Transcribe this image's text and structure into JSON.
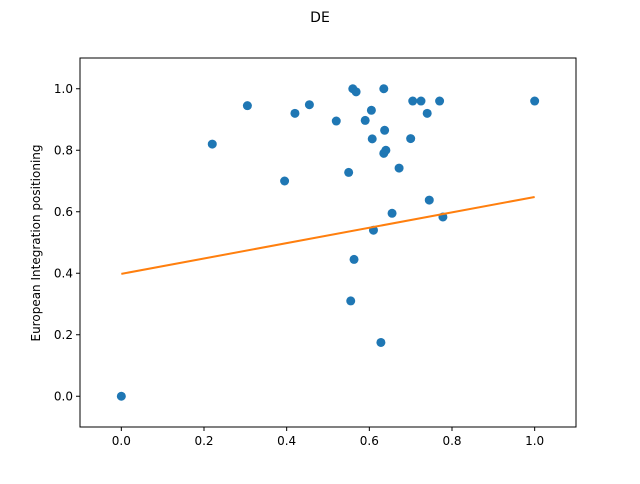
{
  "chart_data": {
    "type": "scatter",
    "title": "DE",
    "xlabel": "",
    "ylabel": "European Integration positioning",
    "xlim": [
      -0.1,
      1.1
    ],
    "ylim": [
      -0.1,
      1.1
    ],
    "xticks": [
      0.0,
      0.2,
      0.4,
      0.6,
      0.8,
      1.0
    ],
    "yticks": [
      0.0,
      0.2,
      0.4,
      0.6,
      0.8,
      1.0
    ],
    "xtick_labels": [
      "0.0",
      "0.2",
      "0.4",
      "0.6",
      "0.8",
      "1.0"
    ],
    "ytick_labels": [
      "0.0",
      "0.2",
      "0.4",
      "0.6",
      "0.8",
      "1.0"
    ],
    "grid": false,
    "legend": "none",
    "colors": {
      "points": "#1f77b4",
      "line": "#ff7f0e"
    },
    "series": [
      {
        "kind": "scatter",
        "points": [
          [
            0.0,
            0.0
          ],
          [
            0.22,
            0.82
          ],
          [
            0.305,
            0.945
          ],
          [
            0.395,
            0.7
          ],
          [
            0.42,
            0.92
          ],
          [
            0.455,
            0.948
          ],
          [
            0.52,
            0.895
          ],
          [
            0.55,
            0.728
          ],
          [
            0.555,
            0.31
          ],
          [
            0.56,
            1.0
          ],
          [
            0.563,
            0.445
          ],
          [
            0.568,
            0.99
          ],
          [
            0.59,
            0.897
          ],
          [
            0.605,
            0.93
          ],
          [
            0.607,
            0.837
          ],
          [
            0.61,
            0.54
          ],
          [
            0.628,
            0.175
          ],
          [
            0.635,
            1.0
          ],
          [
            0.635,
            0.79
          ],
          [
            0.637,
            0.865
          ],
          [
            0.64,
            0.8
          ],
          [
            0.655,
            0.595
          ],
          [
            0.672,
            0.742
          ],
          [
            0.7,
            0.838
          ],
          [
            0.705,
            0.96
          ],
          [
            0.725,
            0.96
          ],
          [
            0.74,
            0.92
          ],
          [
            0.745,
            0.638
          ],
          [
            0.77,
            0.96
          ],
          [
            0.778,
            0.583
          ],
          [
            1.0,
            0.96
          ]
        ]
      },
      {
        "kind": "line",
        "points": [
          [
            0.0,
            0.398
          ],
          [
            1.0,
            0.648
          ]
        ]
      }
    ]
  }
}
